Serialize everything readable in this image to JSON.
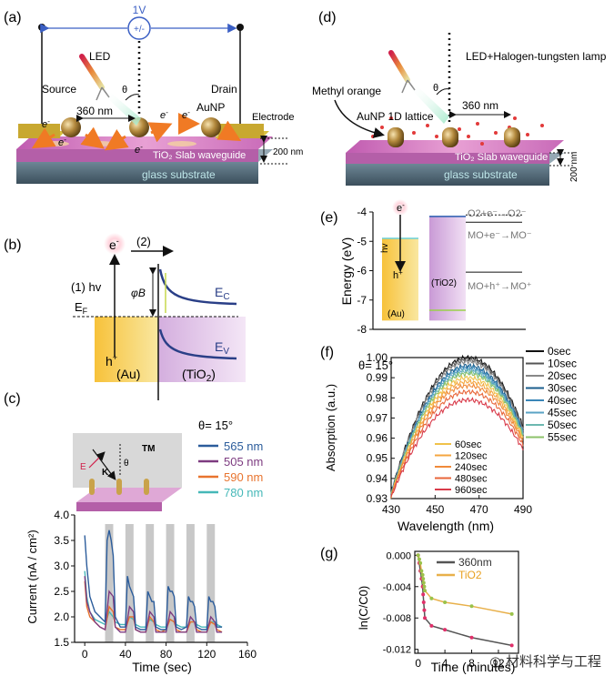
{
  "panel_labels": {
    "a": "(a)",
    "b": "(b)",
    "c": "(c)",
    "d": "(d)",
    "e": "(e)",
    "f": "(f)",
    "g": "(g)"
  },
  "panel_a": {
    "voltage": "1V",
    "source_symbol": "+/-",
    "led": "LED",
    "theta": "θ",
    "source": "Source",
    "drain": "Drain",
    "electrode": "Electrode",
    "wavelength": "360 nm",
    "aunp": "AuNP",
    "electron": "e",
    "waveguide": "TiO₂ Slab waveguide",
    "thickness": "200 nm",
    "substrate": "glass substrate"
  },
  "panel_b": {
    "electron": "e",
    "step2": "(2)",
    "step1": "(1) hv",
    "barrier": "φB",
    "ec": "E",
    "ec_sub": "C",
    "ef": "E",
    "ef_sub": "F",
    "ev": "E",
    "ev_sub": "V",
    "hole": "h",
    "au": "(Au)",
    "tio2": "(TiO",
    "tio2_sub": "2",
    "tio2_end": ")"
  },
  "panel_c": {
    "tm": "TM",
    "e_field": "E",
    "k_vec": "K",
    "theta_inset": "θ",
    "theta": "θ= 15°",
    "legend": [
      {
        "label": "565 nm",
        "color": "#2b5c9b"
      },
      {
        "label": "505 nm",
        "color": "#7d3b80"
      },
      {
        "label": "590 nm",
        "color": "#e8742f"
      },
      {
        "label": "780 nm",
        "color": "#45b8b8"
      }
    ],
    "xlabel": "Time (sec)",
    "ylabel": "Current (nA / cm²)",
    "xticks": [
      "0",
      "40",
      "80",
      "120",
      "160"
    ],
    "yticks": [
      "1.5",
      "2.0",
      "2.5",
      "3.0",
      "3.5",
      "4.0"
    ]
  },
  "panel_d": {
    "lamp": "LED+Halogen-tungsten lamp",
    "methyl": "Methyl orange",
    "lattice": "AuNP 1D lattice",
    "theta": "θ",
    "wavelength": "360 nm",
    "waveguide": "TiO₂ Slab waveguide",
    "thickness": "200 nm",
    "substrate": "glass substrate"
  },
  "panel_e": {
    "ylabel": "Energy (eV)",
    "yticks": [
      "-4",
      "-5",
      "-6",
      "-7",
      "-8"
    ],
    "electron": "e",
    "hv": "hv",
    "hole": "h",
    "au": "(Au)",
    "tio2": "(TiO2)",
    "r1": "O2+e⁻→O2⁻",
    "r2": "MO+e⁻→MO⁻",
    "r3": "MO+h⁺→MO⁺"
  },
  "panel_f": {
    "theta": "θ= 15°",
    "xlabel": "Wavelength (nm)",
    "ylabel": "Absorption (a.u.)",
    "xticks": [
      "430",
      "450",
      "470",
      "490"
    ],
    "yticks": [
      "1.00",
      "0.99",
      "0.98",
      "0.97",
      "0.96",
      "0.95",
      "0.94",
      "0.93"
    ],
    "legend_right": [
      "0sec",
      "10sec",
      "20sec",
      "30sec",
      "40sec",
      "45sec",
      "50sec",
      "55sec"
    ],
    "legend_inner": [
      "60sec",
      "120sec",
      "240sec",
      "480sec",
      "960sec"
    ]
  },
  "panel_g": {
    "xlabel": "Time (minutes)",
    "ylabel": "ln(C/C0)",
    "xticks": [
      "0",
      "4",
      "8",
      "12"
    ],
    "yticks": [
      "0.000",
      "-0.004",
      "-0.008",
      "-0.012"
    ],
    "legend": [
      {
        "label": "360nm",
        "color": "#555555"
      },
      {
        "label": "TiO2",
        "color": "#e8b04a"
      }
    ]
  },
  "watermark": "材料科学与工程",
  "chart_data": [
    {
      "type": "line",
      "title": "",
      "xlabel": "Time (sec)",
      "ylabel": "Current (nA / cm²)",
      "xlim": [
        -10,
        160
      ],
      "ylim": [
        1.5,
        4.0
      ],
      "on_intervals": [
        [
          20,
          28
        ],
        [
          40,
          48
        ],
        [
          60,
          68
        ],
        [
          80,
          88
        ],
        [
          100,
          108
        ],
        [
          120,
          128
        ]
      ],
      "series": [
        {
          "name": "565 nm",
          "x": [
            0,
            2,
            5,
            10,
            15,
            20,
            22,
            24,
            26,
            28,
            30,
            35,
            40,
            42,
            44,
            46,
            48,
            50,
            55,
            60,
            62,
            64,
            66,
            68,
            70,
            75,
            80,
            82,
            84,
            86,
            88,
            90,
            95,
            100,
            102,
            104,
            106,
            108,
            110,
            115,
            120,
            122,
            124,
            126,
            128,
            130,
            135
          ],
          "y": [
            3.6,
            3.0,
            2.4,
            2.1,
            2.0,
            1.9,
            3.5,
            3.7,
            3.5,
            3.2,
            2.0,
            1.8,
            1.8,
            2.8,
            2.6,
            2.5,
            2.4,
            1.8,
            1.75,
            1.75,
            2.5,
            2.4,
            2.3,
            2.3,
            1.8,
            1.75,
            1.75,
            2.6,
            2.5,
            2.5,
            2.4,
            1.8,
            1.75,
            1.8,
            2.4,
            2.3,
            2.3,
            2.2,
            1.8,
            1.75,
            1.75,
            2.4,
            2.3,
            2.3,
            2.2,
            1.8,
            1.8
          ]
        },
        {
          "name": "505 nm",
          "x": [
            0,
            2,
            5,
            10,
            15,
            20,
            24,
            28,
            30,
            35,
            40,
            44,
            48,
            50,
            55,
            60,
            64,
            68,
            70,
            75,
            80,
            84,
            88,
            90,
            95,
            100,
            104,
            108,
            110,
            115,
            120,
            124,
            128,
            130,
            135
          ],
          "y": [
            2.8,
            2.3,
            2.1,
            1.9,
            1.8,
            1.75,
            2.5,
            2.4,
            1.8,
            1.7,
            1.7,
            2.2,
            2.1,
            1.75,
            1.7,
            1.7,
            2.1,
            2.0,
            1.7,
            1.7,
            1.7,
            2.1,
            2.0,
            1.7,
            1.7,
            1.7,
            2.0,
            1.9,
            1.7,
            1.7,
            1.7,
            2.0,
            1.9,
            1.7,
            1.7
          ]
        },
        {
          "name": "590 nm",
          "x": [
            0,
            2,
            5,
            10,
            15,
            20,
            24,
            28,
            30,
            35,
            40,
            44,
            48,
            50,
            55,
            60,
            64,
            68,
            70,
            75,
            80,
            84,
            88,
            90,
            95,
            100,
            104,
            108,
            110,
            115,
            120,
            124,
            128,
            130,
            135
          ],
          "y": [
            2.7,
            2.2,
            2.0,
            1.9,
            1.8,
            1.75,
            2.2,
            2.1,
            1.8,
            1.75,
            1.75,
            2.0,
            2.0,
            1.75,
            1.7,
            1.7,
            2.0,
            1.9,
            1.75,
            1.7,
            1.75,
            1.95,
            1.9,
            1.75,
            1.7,
            1.7,
            1.9,
            1.9,
            1.75,
            1.7,
            1.7,
            1.9,
            1.85,
            1.75,
            1.7
          ]
        },
        {
          "name": "780 nm",
          "x": [
            0,
            2,
            5,
            10,
            15,
            20,
            24,
            28,
            30,
            35,
            40,
            44,
            48,
            50,
            55,
            60,
            64,
            68,
            70,
            75,
            80,
            84,
            88,
            90,
            95,
            100,
            104,
            108,
            110,
            115,
            120,
            124,
            128,
            130,
            135
          ],
          "y": [
            2.9,
            2.4,
            2.1,
            1.95,
            1.9,
            1.85,
            2.1,
            2.0,
            1.9,
            1.85,
            1.85,
            2.0,
            1.95,
            1.85,
            1.8,
            1.8,
            1.95,
            1.9,
            1.85,
            1.8,
            1.8,
            1.95,
            1.9,
            1.85,
            1.8,
            1.8,
            1.9,
            1.9,
            1.85,
            1.8,
            1.8,
            1.9,
            1.9,
            1.85,
            1.8
          ]
        }
      ]
    },
    {
      "type": "bar",
      "title": "",
      "ylabel": "Energy (eV)",
      "ylim": [
        -8,
        -4
      ],
      "categories": [
        "Au",
        "TiO2"
      ],
      "levels": {
        "Au_fermi": -4.9,
        "TiO2_CB": -4.15,
        "TiO2_VB": -7.35,
        "O2_reduction": -4.1,
        "MO_reduction": -4.35,
        "MO_oxidation": -6.05
      }
    },
    {
      "type": "line",
      "title": "",
      "xlabel": "Wavelength (nm)",
      "ylabel": "Absorption (a.u.)",
      "xlim": [
        430,
        490
      ],
      "ylim": [
        0.93,
        1.0
      ],
      "peak_wavelength": 465,
      "series": [
        {
          "name": "0sec",
          "peak": 1.0,
          "color": "#111111"
        },
        {
          "name": "10sec",
          "peak": 0.999,
          "color": "#555555"
        },
        {
          "name": "20sec",
          "peak": 0.998,
          "color": "#888888"
        },
        {
          "name": "30sec",
          "peak": 0.996,
          "color": "#1b5e8c"
        },
        {
          "name": "40sec",
          "peak": 0.995,
          "color": "#3a86b8"
        },
        {
          "name": "45sec",
          "peak": 0.994,
          "color": "#5aa3c4"
        },
        {
          "name": "50sec",
          "peak": 0.993,
          "color": "#6cb8b0"
        },
        {
          "name": "55sec",
          "peak": 0.992,
          "color": "#8cc26a"
        },
        {
          "name": "60sec",
          "peak": 0.99,
          "color": "#f0c24a"
        },
        {
          "name": "120sec",
          "peak": 0.988,
          "color": "#f4a640"
        },
        {
          "name": "240sec",
          "peak": 0.986,
          "color": "#f08a3a"
        },
        {
          "name": "480sec",
          "peak": 0.983,
          "color": "#e8663a"
        },
        {
          "name": "960sec",
          "peak": 0.979,
          "color": "#d93b4a"
        }
      ]
    },
    {
      "type": "line",
      "title": "",
      "xlabel": "Time (minutes)",
      "ylabel": "ln(C/C0)",
      "xlim": [
        -0.5,
        15
      ],
      "ylim": [
        -0.0125,
        0.0005
      ],
      "series": [
        {
          "name": "360nm",
          "x": [
            0,
            0.17,
            0.33,
            0.5,
            0.67,
            0.75,
            0.83,
            0.92,
            1,
            2,
            4,
            8,
            16
          ],
          "y": [
            0,
            -0.001,
            -0.002,
            -0.003,
            -0.004,
            -0.005,
            -0.006,
            -0.007,
            -0.008,
            -0.009,
            -0.0095,
            -0.0105,
            -0.0115
          ]
        },
        {
          "name": "TiO2",
          "x": [
            0,
            0.17,
            0.33,
            0.5,
            0.67,
            0.75,
            0.83,
            0.92,
            1,
            2,
            4,
            8,
            16
          ],
          "y": [
            0,
            -0.0005,
            -0.001,
            -0.002,
            -0.0025,
            -0.003,
            -0.0035,
            -0.004,
            -0.0045,
            -0.0055,
            -0.006,
            -0.0065,
            -0.0075
          ]
        }
      ]
    }
  ]
}
